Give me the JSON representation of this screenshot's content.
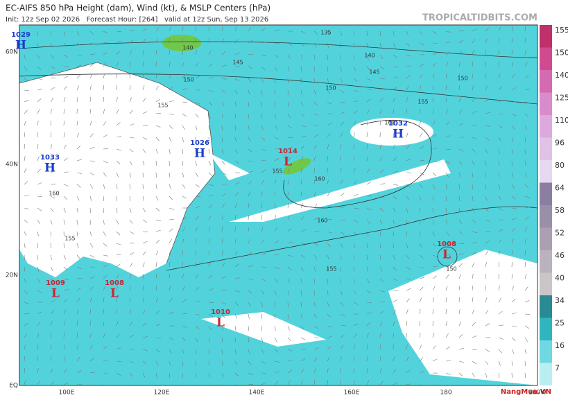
{
  "header": {
    "title": "EC-AIFS 850 hPa Height (dam), Wind (kt), & MSLP Centers (hPa)",
    "subtitle": "Init: 12z Sep 02 2026   Forecast Hour: [264]   valid at 12z Sun, Sep 13 2026",
    "site": "TROPICALTIDBITS.COM"
  },
  "colorbar": {
    "labels": [
      "155",
      "150",
      "140",
      "125",
      "110",
      "96",
      "80",
      "64",
      "58",
      "52",
      "46",
      "40",
      "34",
      "25",
      "16",
      "7"
    ]
  },
  "axes": {
    "lat_labels": [
      "60N",
      "40N",
      "20N",
      "EQ"
    ],
    "lon_labels": [
      "100E",
      "120E",
      "140E",
      "160E",
      "180",
      "160W"
    ]
  },
  "centers": [
    {
      "type": "H",
      "pressure": "1029"
    },
    {
      "type": "H",
      "pressure": "1033"
    },
    {
      "type": "H",
      "pressure": "1026"
    },
    {
      "type": "L",
      "pressure": "1014"
    },
    {
      "type": "H",
      "pressure": "1032"
    },
    {
      "type": "L",
      "pressure": "1008"
    },
    {
      "type": "L",
      "pressure": "1009"
    },
    {
      "type": "L",
      "pressure": "1008"
    },
    {
      "type": "L",
      "pressure": "1010"
    }
  ],
  "contour_labels": [
    "135",
    "140",
    "140",
    "145",
    "145",
    "150",
    "150",
    "150",
    "155",
    "155",
    "160",
    "160",
    "160",
    "155",
    "160",
    "155",
    "155",
    "150"
  ],
  "watermark": "NangMua.VN"
}
